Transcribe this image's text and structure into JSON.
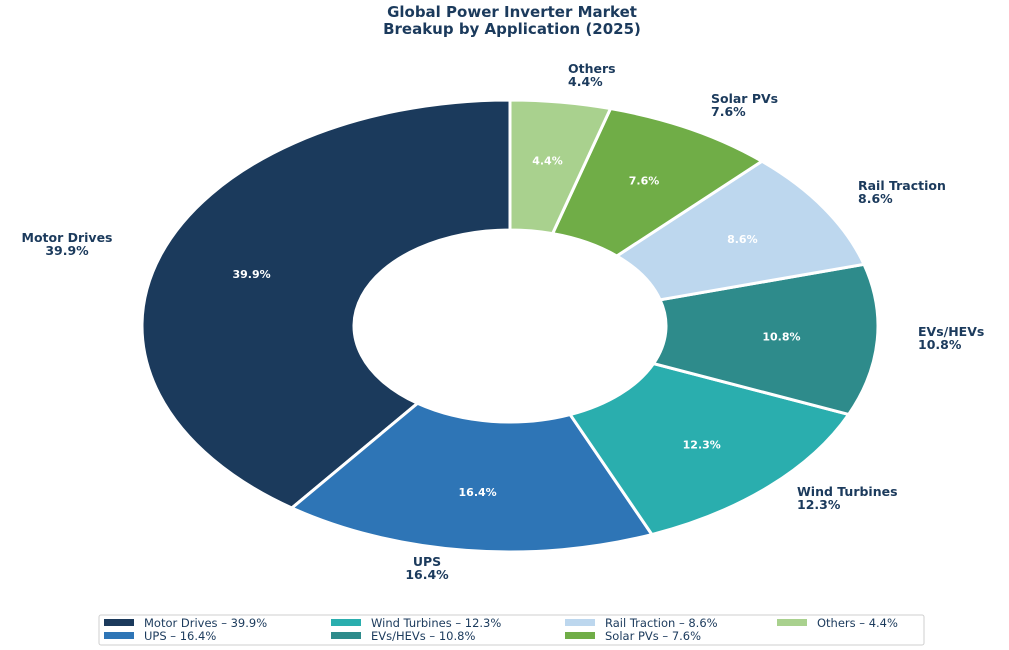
{
  "chart_data": {
    "type": "pie",
    "variant": "donut",
    "title": [
      "Global Power Inverter Market",
      "Breakup by Application (2025)"
    ],
    "unit": "%",
    "series": [
      {
        "name": "Motor Drives",
        "value": 39.9,
        "color": "#1b3a5c",
        "inner_text_color": "#ffffff"
      },
      {
        "name": "UPS",
        "value": 16.4,
        "color": "#2e75b6",
        "inner_text_color": "#ffffff"
      },
      {
        "name": "Wind Turbines",
        "value": 12.3,
        "color": "#2aaeae",
        "inner_text_color": "#ffffff"
      },
      {
        "name": "EVs/HEVs",
        "value": 10.8,
        "color": "#2e8b8b",
        "inner_text_color": "#ffffff"
      },
      {
        "name": "Rail Traction",
        "value": 8.6,
        "color": "#bdd7ee",
        "inner_text_color": "#ffffff"
      },
      {
        "name": "Solar PVs",
        "value": 7.6,
        "color": "#70ad47",
        "inner_text_color": "#ffffff"
      },
      {
        "name": "Others",
        "value": 4.4,
        "color": "#a9d18e",
        "inner_text_color": "#ffffff"
      }
    ],
    "legend_order": [
      "Motor Drives",
      "Wind Turbines",
      "Rail Traction",
      "Others",
      "UPS",
      "EVs/HEVs",
      "Solar PVs"
    ],
    "legend_position": "bottom",
    "legend_separator": " – ",
    "start_angle": "top",
    "direction": "counterclockwise"
  }
}
